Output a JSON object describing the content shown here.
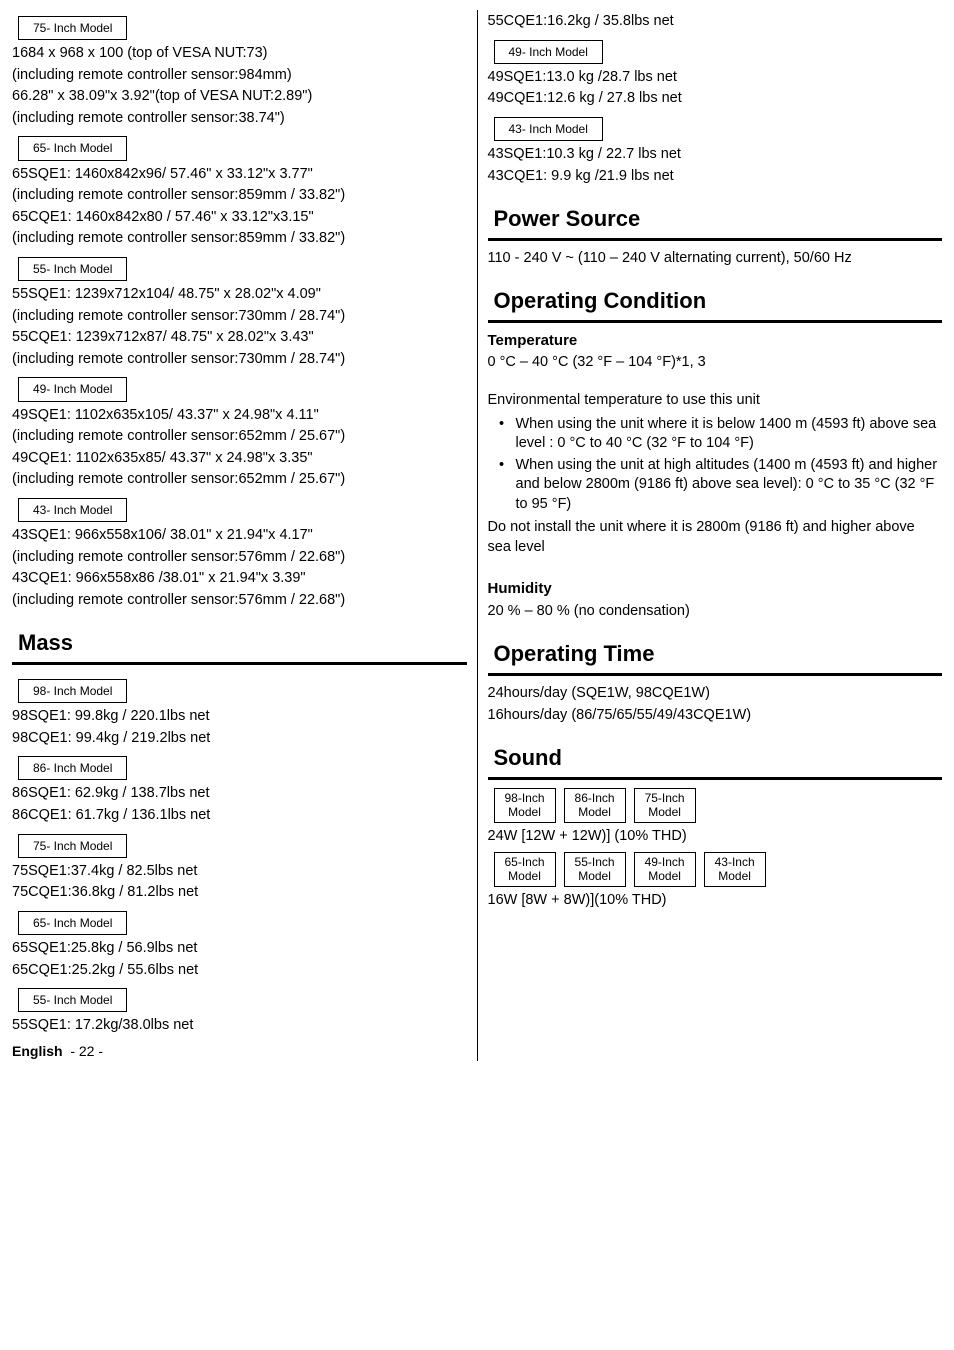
{
  "left": {
    "m75": {
      "label": "75- Inch Model",
      "l1": "1684 x 968 x 100  (top of  VESA NUT:73)",
      "l2": "(including remote controller sensor:984mm)",
      "l3": "66.28\" x 38.09\"x 3.92\"(top of VESA NUT:2.89\")",
      "l4": "(including remote controller sensor:38.74\")"
    },
    "m65": {
      "label": "65- Inch Model",
      "l1": "65SQE1: 1460x842x96/ 57.46\" x 33.12\"x 3.77\"",
      "l2": "(including remote controller sensor:859mm / 33.82\")",
      "l3": "65CQE1: 1460x842x80 / 57.46\" x 33.12\"x3.15\"",
      "l4": "(including remote controller sensor:859mm / 33.82\")"
    },
    "m55": {
      "label": "55- Inch Model",
      "l1": "55SQE1: 1239x712x104/ 48.75\" x 28.02\"x 4.09\"",
      "l2": "(including remote controller sensor:730mm / 28.74\")",
      "l3": "55CQE1: 1239x712x87/ 48.75\" x 28.02\"x 3.43\"",
      "l4": "(including remote controller sensor:730mm / 28.74\")"
    },
    "m49": {
      "label": "49- Inch Model",
      "l1": "49SQE1: 1102x635x105/ 43.37\" x 24.98\"x 4.11\"",
      "l2": "(including remote controller sensor:652mm / 25.67\")",
      "l3": "49CQE1: 1102x635x85/ 43.37\" x 24.98\"x 3.35\"",
      "l4": "(including remote controller sensor:652mm / 25.67\")"
    },
    "m43": {
      "label": "43- Inch Model",
      "l1": "43SQE1: 966x558x106/ 38.01\" x 21.94\"x 4.17\"",
      "l2": "(including remote controller sensor:576mm / 22.68\")",
      "l3": "43CQE1: 966x558x86 /38.01\" x 21.94\"x 3.39\"",
      "l4": "(including remote controller sensor:576mm / 22.68\")"
    },
    "mass": {
      "title": "Mass",
      "m98": {
        "label": "98- Inch Model",
        "l1": "98SQE1: 99.8kg / 220.1lbs net",
        "l2": "98CQE1: 99.4kg / 219.2lbs net"
      },
      "m86": {
        "label": "86- Inch Model",
        "l1": "86SQE1: 62.9kg  / 138.7lbs net",
        "l2": "86CQE1: 61.7kg / 136.1lbs net"
      },
      "m75": {
        "label": "75- Inch Model",
        "l1": "75SQE1:37.4kg / 82.5lbs net",
        "l2": "75CQE1:36.8kg / 81.2lbs net"
      },
      "m65": {
        "label": "65- Inch Model",
        "l1": "65SQE1:25.8kg / 56.9lbs net",
        "l2": "65CQE1:25.2kg / 55.6lbs net"
      },
      "m55": {
        "label": "55- Inch Model",
        "l1": "55SQE1: 17.2kg/38.0lbs net"
      }
    }
  },
  "right": {
    "top55": "55CQE1:16.2kg / 35.8lbs net",
    "m49": {
      "label": "49- Inch Model",
      "l1": "49SQE1:13.0 kg /28.7 lbs net",
      "l2": "49CQE1:12.6 kg / 27.8 lbs net"
    },
    "m43": {
      "label": "43- Inch Model",
      "l1": "43SQE1:10.3 kg / 22.7 lbs net",
      "l2": "43CQE1: 9.9 kg /21.9 lbs net"
    },
    "power": {
      "title": "Power Source",
      "text": "110 - 240 V ~ (110 – 240 V alternating current), 50/60 Hz"
    },
    "opcond": {
      "title": "Operating Condition",
      "temp_label": "Temperature",
      "temp_val": "0 °C – 40 °C (32 °F – 104 °F)*1, 3",
      "env_intro": "Environmental temperature to use this unit",
      "b1": "When using the unit where it is below 1400 m (4593 ft) above sea level : 0 °C to 40 °C (32 °F to 104 °F)",
      "b2": "When using the unit at high altitudes (1400 m (4593 ft) and higher and below 2800m (9186 ft) above sea level): 0 °C to 35 °C (32 °F to 95 °F)",
      "noinstall": "Do not install the unit where it is 2800m (9186 ft) and higher above sea level",
      "hum_label": "Humidity",
      "hum_val": "20 % – 80 % (no condensation)"
    },
    "optime": {
      "title": "Operating Time",
      "l1": "24hours/day (SQE1W, 98CQE1W)",
      "l2": "16hours/day (86/75/65/55/49/43CQE1W)"
    },
    "sound": {
      "title": "Sound",
      "row1": [
        "98-Inch Model",
        "86-Inch Model",
        "75-Inch Model"
      ],
      "v1": "24W [12W + 12W)] (10% THD)",
      "row2": [
        "65-Inch Model",
        "55-Inch Model",
        "49-Inch Model",
        "43-Inch Model"
      ],
      "v2": "16W [8W + 8W)](10% THD)"
    }
  },
  "footer": {
    "lang": "English",
    "page": "- 22 -"
  }
}
